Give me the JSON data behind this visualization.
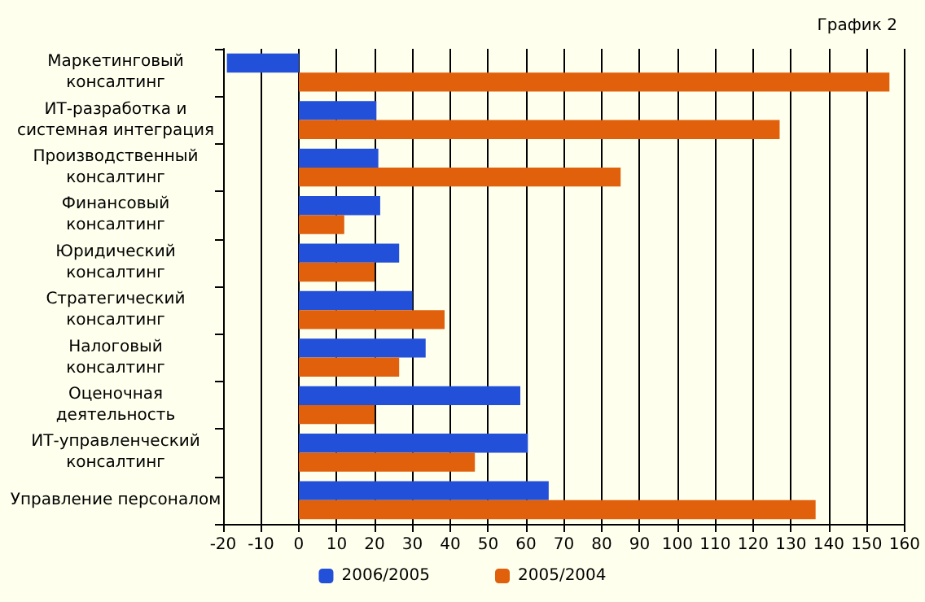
{
  "chart_data": {
    "type": "bar",
    "orientation": "horizontal",
    "title": "График 2",
    "categories": [
      "Маркетинговый\nконсалтинг",
      "ИТ-разработка и\nсистемная интеграция",
      "Производственный\nконсалтинг",
      "Финансовый\nконсалтинг",
      "Юридический\nконсалтинг",
      "Стратегический\nконсалтинг",
      "Налоговый\nконсалтинг",
      "Оценочная\nдеятельность",
      "ИТ-управленческий\nконсалтинг",
      "Управление персоналом"
    ],
    "series": [
      {
        "name": "2006/2005",
        "color": "#2250d8",
        "values": [
          -19,
          20.5,
          21,
          21.5,
          26.5,
          30,
          33.5,
          58.5,
          60.5,
          66
        ]
      },
      {
        "name": "2005/2004",
        "color": "#e0600c",
        "values": [
          156,
          127,
          85,
          12,
          20,
          38.5,
          26.5,
          20,
          46.5,
          136.5
        ]
      }
    ],
    "xlim": [
      -20,
      160
    ],
    "xticks": [
      -20,
      -10,
      0,
      10,
      20,
      30,
      40,
      50,
      60,
      70,
      80,
      90,
      100,
      110,
      120,
      130,
      140,
      150,
      160
    ],
    "grid": "x",
    "legend": "bottom"
  }
}
